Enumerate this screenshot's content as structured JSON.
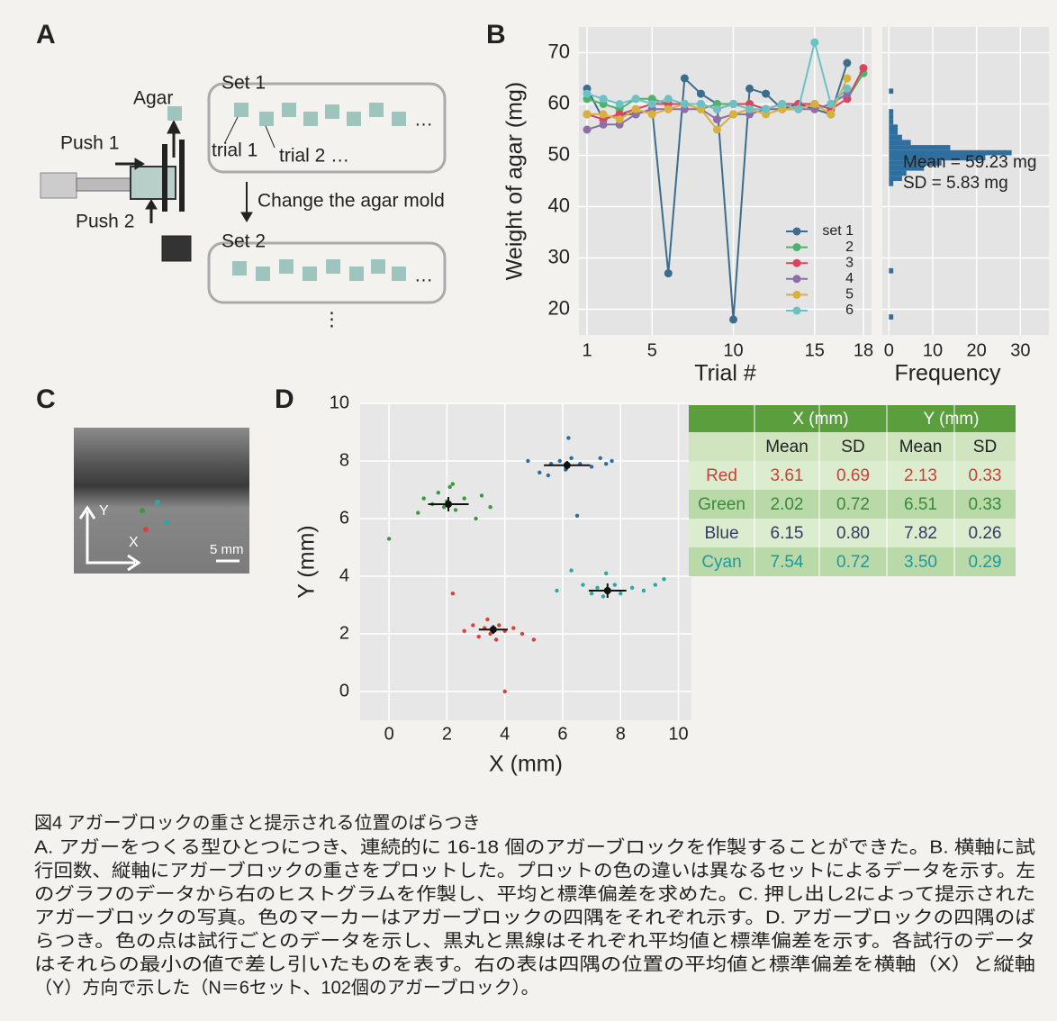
{
  "figure": {
    "panel_labels": [
      "A",
      "B",
      "C",
      "D"
    ]
  },
  "diagram_a": {
    "agar": "Agar",
    "push1": "Push 1",
    "push2": "Push 2",
    "set1": "Set 1",
    "trial1": "trial 1",
    "trial2": "trial 2 …",
    "ellipsis": "…",
    "change": "Change the agar mold",
    "set2": "Set 2",
    "ellipsis2": "…",
    "vdots": "⋮"
  },
  "photo_c": {
    "y_axis": "Y",
    "x_axis": "X",
    "scale": "5 mm"
  },
  "chart_data": [
    {
      "type": "line",
      "ylabel": "Weight of agar (mg)",
      "xlabel": "Trial #",
      "x": [
        1,
        2,
        3,
        4,
        5,
        6,
        7,
        8,
        9,
        10,
        11,
        12,
        13,
        14,
        15,
        16,
        17,
        18
      ],
      "xlim": [
        0.5,
        18.5
      ],
      "xticks": [
        1,
        5,
        10,
        15,
        18
      ],
      "ylim": [
        15,
        75
      ],
      "yticks": [
        20,
        30,
        40,
        50,
        60,
        70
      ],
      "grid": true,
      "legend": "bottom-right",
      "series": [
        {
          "name": "set 1",
          "color": "#3d6d8e",
          "values": [
            63,
            57,
            58,
            58,
            59,
            27,
            65,
            62,
            60,
            18,
            63,
            62,
            59,
            60,
            59,
            58,
            68,
            null
          ]
        },
        {
          "name": "2",
          "color": "#4db36a",
          "values": [
            61,
            60,
            59,
            61,
            61,
            60,
            60,
            59,
            60,
            60,
            60,
            59,
            59,
            59,
            60,
            59,
            61,
            66
          ]
        },
        {
          "name": "3",
          "color": "#d9455f",
          "values": [
            58,
            57,
            58,
            59,
            60,
            60,
            60,
            60,
            59,
            60,
            60,
            59,
            60,
            60,
            60,
            59,
            61,
            67
          ]
        },
        {
          "name": "4",
          "color": "#8b6fa5",
          "values": [
            55,
            56,
            56,
            58,
            59,
            59,
            59,
            59,
            57,
            58,
            58,
            59,
            59,
            59,
            59,
            60,
            62,
            null
          ]
        },
        {
          "name": "5",
          "color": "#d8b03e",
          "values": [
            58,
            58,
            57,
            59,
            58,
            59,
            60,
            59,
            55,
            58,
            59,
            58,
            59,
            59,
            60,
            58,
            65,
            null
          ]
        },
        {
          "name": "6",
          "color": "#6bc1c4",
          "values": [
            62,
            61,
            60,
            61,
            60,
            61,
            60,
            60,
            59,
            60,
            59,
            59,
            60,
            59,
            72,
            60,
            63,
            null
          ]
        }
      ]
    },
    {
      "type": "histogram",
      "xlabel": "Frequency",
      "color": "#2f6f9f",
      "xlim": [
        -1.5,
        36.5
      ],
      "xticks": [
        0,
        10,
        20,
        30
      ],
      "ylim": [
        15,
        75
      ],
      "bins": [
        17,
        18,
        19,
        20,
        21,
        22,
        23,
        24,
        25,
        26,
        27,
        28,
        29,
        30,
        31,
        32,
        33,
        34,
        35,
        36,
        37,
        38,
        39,
        40,
        41,
        42,
        43,
        44,
        45,
        46,
        47,
        48,
        49,
        50,
        51,
        52,
        53,
        54,
        55,
        56,
        57,
        58,
        59,
        60,
        61,
        62,
        63,
        64,
        65,
        66,
        67,
        68,
        69,
        70,
        71,
        72,
        73
      ],
      "counts": [
        0,
        1,
        0,
        0,
        0,
        0,
        0,
        0,
        0,
        0,
        1,
        0,
        0,
        0,
        0,
        0,
        0,
        0,
        0,
        0,
        0,
        0,
        0,
        0,
        0,
        0,
        0,
        1,
        3,
        4,
        8,
        12,
        22,
        28,
        14,
        5,
        3,
        2,
        2,
        1,
        1,
        1,
        0,
        0,
        0,
        1,
        0,
        0,
        0,
        0,
        0,
        0,
        0,
        0,
        0,
        0
      ],
      "annotations": [
        "Mean = 59.23 mg",
        "SD = 5.83 mg"
      ]
    },
    {
      "type": "scatter",
      "xlabel": "X (mm)",
      "ylabel": "Y (mm)",
      "xlim": [
        -1,
        10.45
      ],
      "ylim": [
        -1,
        10
      ],
      "xticks": [
        0,
        2,
        4,
        6,
        8,
        10
      ],
      "yticks": [
        0,
        2,
        4,
        6,
        8,
        10
      ],
      "grid": true,
      "series": [
        {
          "name": "Red",
          "color": "#d9403a",
          "x": [
            2.6,
            2.9,
            3.1,
            3.3,
            3.4,
            3.5,
            3.6,
            3.7,
            3.8,
            4.0,
            4.3,
            4.6,
            5.0,
            2.2,
            4.0
          ],
          "y": [
            2.1,
            2.3,
            1.9,
            2.2,
            2.5,
            2.0,
            2.2,
            1.8,
            2.3,
            2.1,
            2.2,
            2.0,
            1.8,
            3.4,
            0.0
          ]
        },
        {
          "name": "Green",
          "color": "#3a9a3a",
          "x": [
            0.0,
            1.0,
            1.2,
            1.5,
            1.7,
            1.9,
            2.0,
            2.1,
            2.3,
            2.6,
            3.0,
            3.2,
            3.5,
            2.2
          ],
          "y": [
            5.3,
            6.2,
            6.7,
            6.5,
            6.9,
            6.4,
            6.6,
            7.1,
            6.3,
            6.7,
            6.0,
            6.8,
            6.4,
            7.2
          ]
        },
        {
          "name": "Blue",
          "color": "#2c6ea0",
          "x": [
            4.8,
            5.2,
            5.6,
            5.9,
            6.1,
            6.3,
            6.6,
            7.0,
            7.3,
            7.5,
            7.7,
            6.5,
            6.2,
            5.5
          ],
          "y": [
            8.0,
            7.6,
            7.9,
            8.0,
            7.7,
            8.1,
            7.9,
            7.8,
            8.1,
            7.9,
            8.0,
            6.1,
            8.8,
            7.5
          ]
        },
        {
          "name": "Cyan",
          "color": "#2aa8a8",
          "x": [
            5.8,
            6.7,
            7.0,
            7.2,
            7.4,
            7.6,
            7.8,
            8.0,
            8.4,
            8.8,
            9.2,
            9.5,
            7.5,
            6.3
          ],
          "y": [
            3.5,
            3.7,
            3.4,
            3.6,
            3.3,
            3.5,
            3.7,
            3.4,
            3.6,
            3.5,
            3.7,
            3.9,
            4.1,
            4.2
          ]
        }
      ],
      "mean_markers": [
        {
          "x": 3.6,
          "y": 2.15,
          "x_err": 0.5,
          "y_err": 0.15
        },
        {
          "x": 2.05,
          "y": 6.5,
          "x_err": 0.7,
          "y_err": 0.25
        },
        {
          "x": 6.15,
          "y": 7.85,
          "x_err": 0.8,
          "y_err": 0.15
        },
        {
          "x": 7.55,
          "y": 3.5,
          "x_err": 0.65,
          "y_err": 0.25
        }
      ]
    }
  ],
  "table_d": {
    "header": [
      "X (mm)",
      "Y (mm)"
    ],
    "subheader": [
      "Mean",
      "SD",
      "Mean",
      "SD"
    ],
    "rows": [
      [
        "Red",
        "3.61",
        "0.69",
        "2.13",
        "0.33"
      ],
      [
        "Green",
        "2.02",
        "0.72",
        "6.51",
        "0.33"
      ],
      [
        "Blue",
        "6.15",
        "0.80",
        "7.82",
        "0.26"
      ],
      [
        "Cyan",
        "7.54",
        "0.72",
        "3.50",
        "0.29"
      ]
    ],
    "row_colors": [
      "#c8403a",
      "#3a8a3a",
      "#333a66",
      "#1f9a9a"
    ]
  },
  "caption": {
    "title": "図4 アガーブロックの重さと提示される位置のばらつき",
    "lines": [
      "A. アガーをつくる型ひとつにつき、連続的に 16-18 個のアガーブロックを作製することができた。B. 横軸に試",
      "行回数、縦軸にアガーブロックの重さをプロットした。プロットの色の違いは異なるセットによるデータを示す。左",
      "のグラフのデータから右のヒストグラムを作製し、平均と標準偏差を求めた。C. 押し出し2によって提示された",
      "アガーブロックの写真。色のマーカーはアガーブロックの四隅をそれぞれ示す。D. アガーブロックの四隅のば",
      "らつき。色の点は試行ごとのデータを示し、黒丸と黒線はそれぞれ平均値と標準偏差を示す。各試行のデータ",
      "はそれらの最小の値で差し引いたものを表す。右の表は四隅の位置の平均値と標準偏差を横軸（X）と縦軸",
      "（Y）方向で示した（N＝6セット、102個のアガーブロック）。"
    ]
  }
}
